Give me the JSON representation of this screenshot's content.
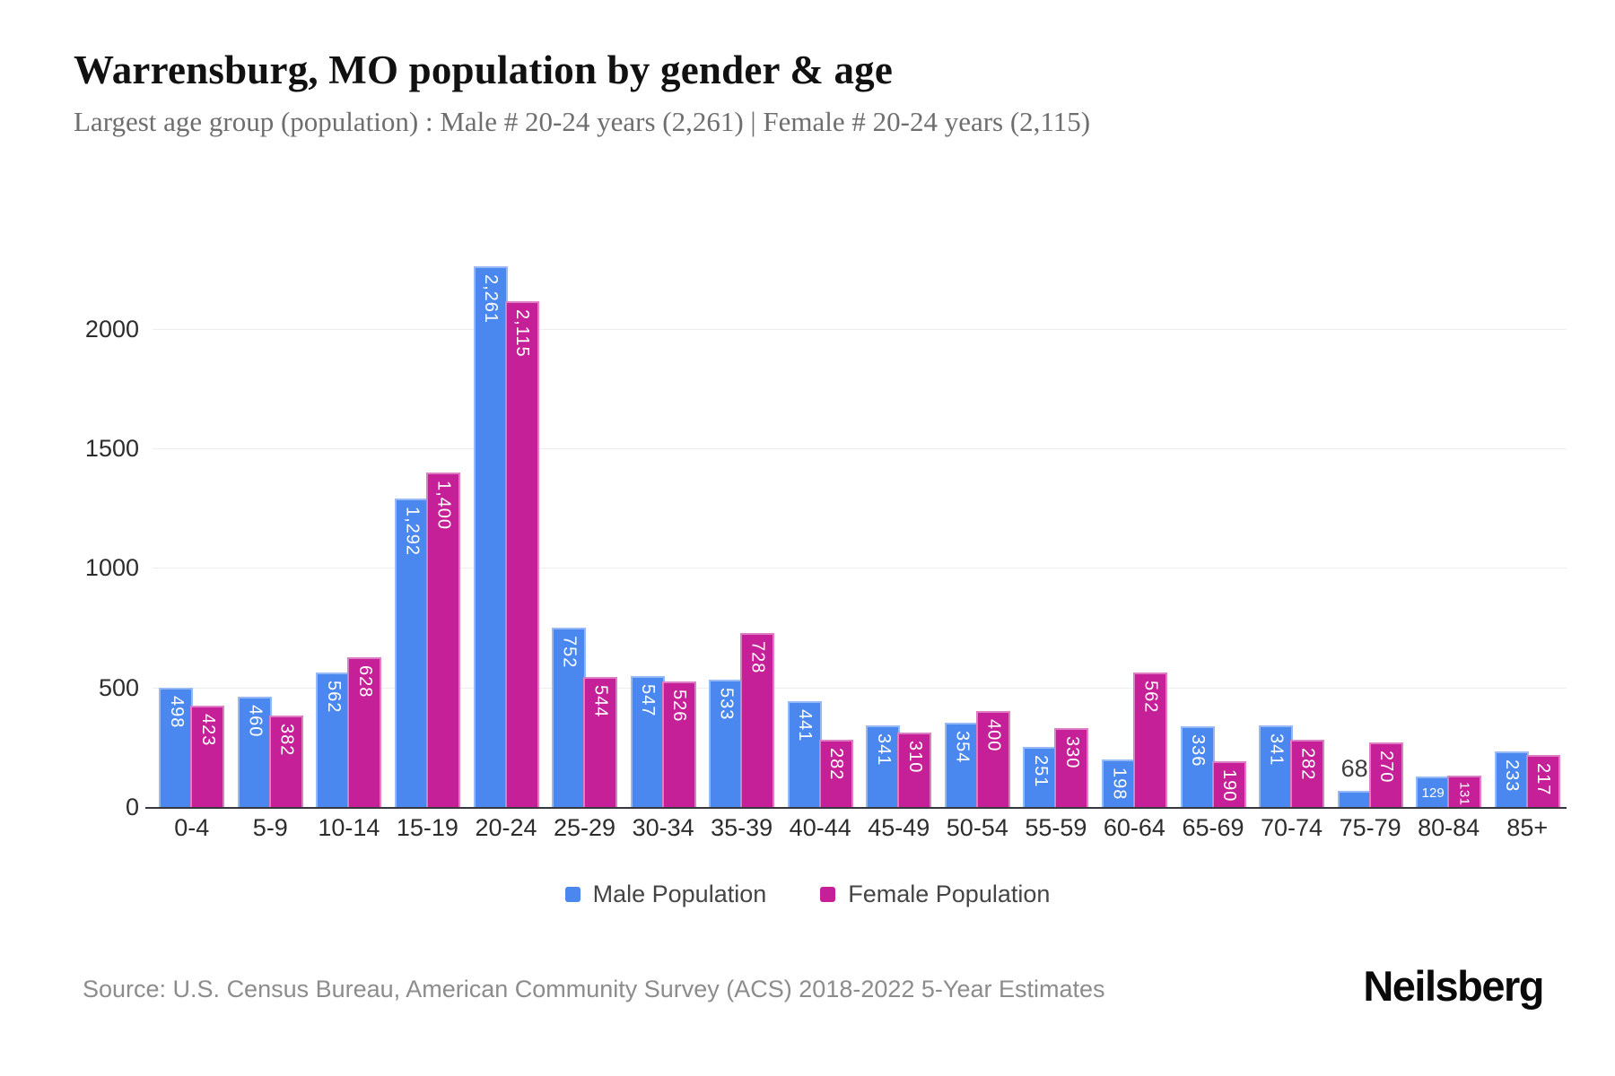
{
  "header": {
    "title": "Warrensburg, MO population by gender & age",
    "subtitle": "Largest age group (population) : Male # 20-24 years (2,261) | Female # 20-24 years (2,115)"
  },
  "chart_data": {
    "type": "bar",
    "title": "Warrensburg, MO population by gender & age",
    "subtitle": "Largest age group (population) : Male # 20-24 years (2,261) | Female # 20-24 years (2,115)",
    "categories": [
      "0-4",
      "5-9",
      "10-14",
      "15-19",
      "20-24",
      "25-29",
      "30-34",
      "35-39",
      "40-44",
      "45-49",
      "50-54",
      "55-59",
      "60-64",
      "65-69",
      "70-74",
      "75-79",
      "80-84",
      "85+"
    ],
    "series": [
      {
        "name": "Male Population",
        "color": "#4a87ee",
        "values": [
          498,
          460,
          562,
          1292,
          2261,
          752,
          547,
          533,
          441,
          341,
          354,
          251,
          198,
          336,
          341,
          68,
          129,
          233
        ]
      },
      {
        "name": "Female Population",
        "color": "#c52098",
        "values": [
          423,
          382,
          628,
          1400,
          2115,
          544,
          526,
          728,
          282,
          310,
          400,
          330,
          562,
          190,
          282,
          270,
          131,
          217
        ]
      }
    ],
    "xlabel": "",
    "ylabel": "",
    "yticks": [
      0,
      500,
      1000,
      1500,
      2000
    ],
    "ylim": [
      0,
      2400
    ],
    "grid": "horizontal",
    "legend_position": "bottom"
  },
  "footer": {
    "source": "Source: U.S. Census Bureau, American Community Survey (ACS) 2018-2022 5-Year Estimates",
    "brand": "Neilsberg"
  }
}
